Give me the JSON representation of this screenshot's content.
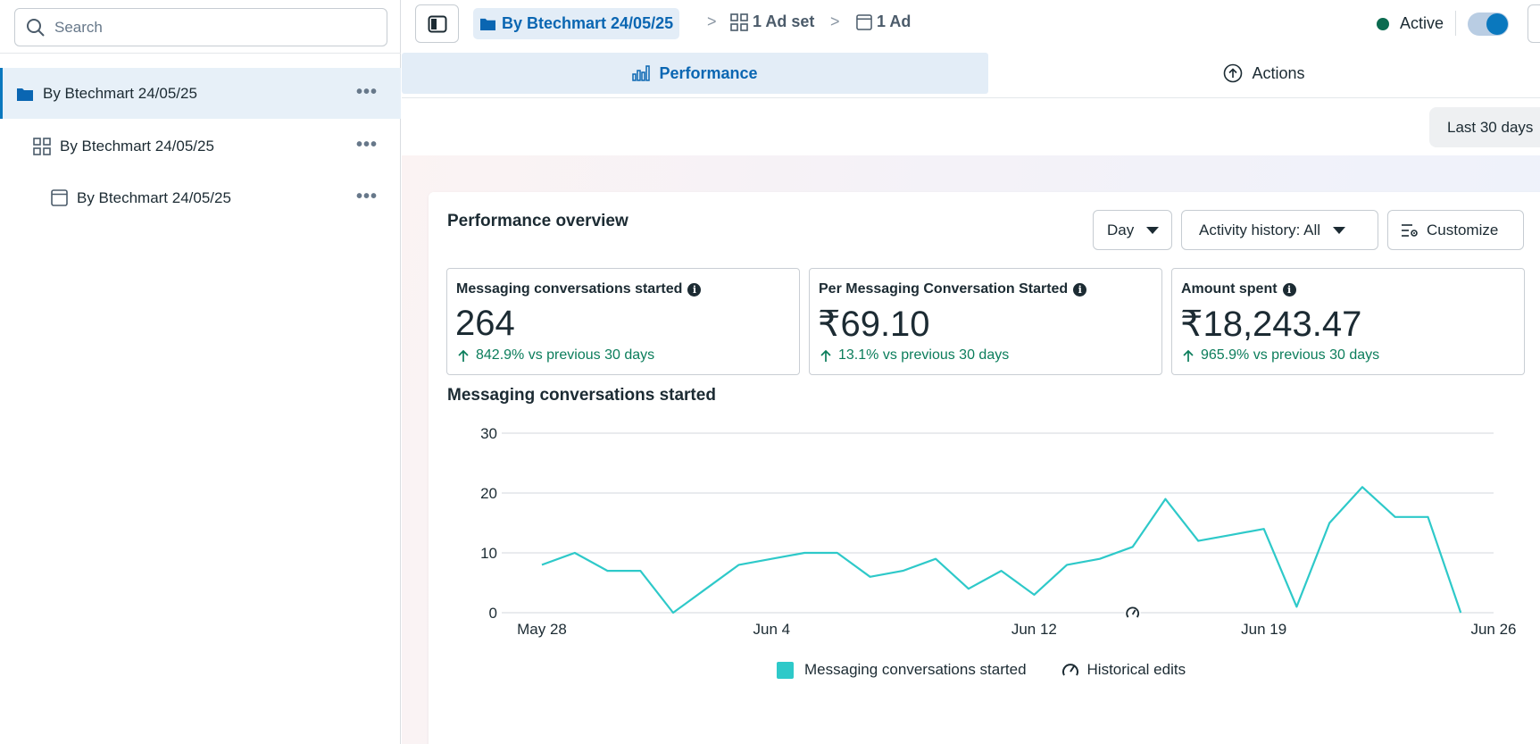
{
  "sidebar": {
    "search_placeholder": "Search",
    "items": [
      {
        "label": "By Btechmart 24/05/25",
        "level": "campaign"
      },
      {
        "label": "By Btechmart 24/05/25",
        "level": "ad-set"
      },
      {
        "label": "By Btechmart 24/05/25",
        "level": "ad"
      }
    ],
    "more_glyph": "•••"
  },
  "header": {
    "breadcrumb_campaign": "By Btechmart 24/05/25",
    "breadcrumb_adset": "1 Ad set",
    "breadcrumb_ad": "1 Ad",
    "separator": ">",
    "status_label": "Active"
  },
  "tabs": {
    "performance": "Performance",
    "actions": "Actions"
  },
  "date_range": "Last 30 days",
  "overview": {
    "title": "Performance overview",
    "day_label": "Day",
    "activity_label": "Activity history: All",
    "customize_label": "Customize",
    "metrics": [
      {
        "label": "Messaging conversations started",
        "value": "264",
        "delta": "842.9% vs previous 30 days"
      },
      {
        "label": "Per Messaging Conversation Started",
        "value": "₹69.10",
        "delta": "13.1% vs previous 30 days"
      },
      {
        "label": "Amount spent",
        "value": "₹18,243.47",
        "delta": "965.9% vs previous 30 days"
      }
    ]
  },
  "chart_data": {
    "type": "line",
    "title": "Messaging conversations started",
    "x": [
      "May 28",
      "May 29",
      "May 30",
      "May 31",
      "Jun 1",
      "Jun 2",
      "Jun 3",
      "Jun 4",
      "Jun 5",
      "Jun 6",
      "Jun 7",
      "Jun 8",
      "Jun 9",
      "Jun 10",
      "Jun 11",
      "Jun 12",
      "Jun 13",
      "Jun 14",
      "Jun 15",
      "Jun 16",
      "Jun 17",
      "Jun 18",
      "Jun 19",
      "Jun 20",
      "Jun 21",
      "Jun 22",
      "Jun 23",
      "Jun 24",
      "Jun 25",
      "Jun 26"
    ],
    "series": [
      {
        "name": "Messaging conversations started",
        "values": [
          8,
          10,
          7,
          7,
          0,
          4,
          8,
          9,
          10,
          10,
          6,
          7,
          9,
          4,
          7,
          3,
          8,
          9,
          11,
          19,
          12,
          13,
          14,
          1,
          15,
          21,
          16,
          16,
          0,
          null
        ]
      }
    ],
    "x_tick_labels": [
      "May 28",
      "Jun 4",
      "Jun 12",
      "Jun 19",
      "Jun 26"
    ],
    "y_ticks": [
      0,
      10,
      20,
      30
    ],
    "ylim": [
      0,
      30
    ],
    "historical_edit_at": "Jun 15",
    "legend": [
      "Messaging conversations started",
      "Historical edits"
    ],
    "series_color": "#2ec9c9"
  }
}
